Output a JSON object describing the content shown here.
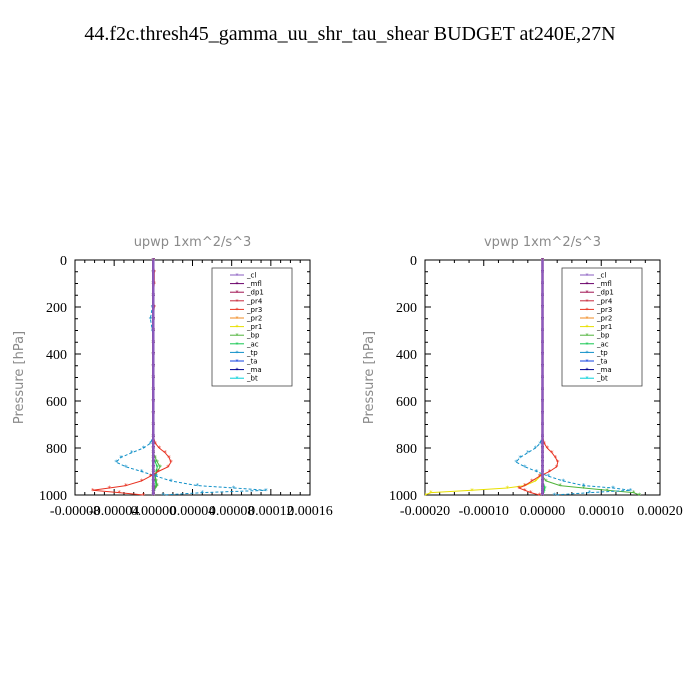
{
  "title": "44.f2c.thresh45_gamma_uu_shr_tau_shear  BUDGET at240E,27N",
  "legend_colors": [
    "#8a5cc0",
    "#6a006a",
    "#a01050",
    "#c8283c",
    "#e83222",
    "#f08a20",
    "#e8e000",
    "#50b43c",
    "#14c850",
    "#1090c8",
    "#1040e0",
    "#000090",
    "#00d0d8"
  ],
  "chart_data": [
    {
      "type": "line",
      "title": "upwp   1xm^2/s^3",
      "ylabel": "Pressure [hPa]",
      "xlabel": "",
      "xlim": [
        -8e-05,
        0.00016
      ],
      "ylim": [
        1000,
        0
      ],
      "x_tick_labels": [
        "-0.00008",
        "-0.00004",
        "0.00000",
        "0.00004",
        "0.00008",
        "0.00012",
        "0.00016"
      ],
      "y_tick_labels": [
        "0",
        "200",
        "400",
        "600",
        "800",
        "1000"
      ],
      "legend": [
        "_cl",
        "_mfl",
        "_dp1",
        "_pr4",
        "_pr3",
        "_pr2",
        "_pr1",
        "_bp",
        "_ac",
        "_tp",
        "_ta",
        "_ma",
        "_bt"
      ],
      "legend_position": "top-right",
      "y": [
        0,
        50,
        100,
        150,
        200,
        250,
        300,
        350,
        400,
        450,
        500,
        550,
        600,
        650,
        700,
        750,
        780,
        800,
        820,
        840,
        860,
        880,
        900,
        920,
        940,
        960,
        970,
        980,
        990,
        1000
      ],
      "series": [
        {
          "name": "_cl",
          "values": [
            0,
            0,
            0,
            0,
            0,
            0,
            0,
            0,
            0,
            0,
            0,
            0,
            0,
            0,
            0,
            0,
            0,
            0,
            0,
            0,
            0,
            0,
            0,
            0,
            0,
            0,
            0,
            0,
            0,
            0
          ]
        },
        {
          "name": "_mfl",
          "values": [
            0,
            0,
            0,
            0,
            0,
            0,
            0,
            0,
            0,
            0,
            0,
            0,
            0,
            0,
            0,
            0,
            0,
            0,
            0,
            0,
            0,
            0,
            0,
            0,
            0,
            0,
            0,
            0,
            0,
            0
          ]
        },
        {
          "name": "_dp1",
          "values": [
            0,
            0,
            0,
            0,
            0,
            0,
            0,
            0,
            0,
            0,
            0,
            0,
            0,
            0,
            0,
            0,
            0,
            0,
            0,
            0,
            0,
            0,
            0,
            0,
            0,
            0,
            0,
            0,
            0,
            0
          ]
        },
        {
          "name": "_pr4",
          "values": [
            0,
            0,
            0,
            0,
            0,
            0,
            0,
            0,
            0,
            0,
            0,
            0,
            0,
            0,
            0,
            0,
            0,
            0,
            0,
            0,
            0,
            0,
            0,
            0,
            0,
            0,
            0,
            0,
            0,
            0
          ]
        },
        {
          "name": "_pr3",
          "values": [
            0,
            1e-06,
            1e-06,
            0,
            1e-06,
            0,
            0,
            0,
            0,
            0,
            0,
            0,
            0,
            0,
            0,
            0,
            2e-06,
            6e-06,
            1.2e-05,
            1.6e-05,
            1.8e-05,
            1.5e-05,
            5e-06,
            -3e-06,
            -1.2e-05,
            -2.8e-05,
            -4.5e-05,
            -6.2e-05,
            -3.5e-05,
            -1e-05
          ]
        },
        {
          "name": "_pr2",
          "values": [
            0,
            0,
            0,
            0,
            0,
            0,
            0,
            0,
            0,
            0,
            0,
            0,
            0,
            0,
            0,
            0,
            0,
            0,
            0,
            0,
            0,
            0,
            0,
            0,
            0,
            0,
            0,
            0,
            0,
            0
          ]
        },
        {
          "name": "_pr1",
          "values": [
            0,
            0,
            0,
            0,
            0,
            0,
            0,
            0,
            0,
            0,
            0,
            0,
            0,
            0,
            0,
            0,
            0,
            0,
            0,
            0,
            0,
            0,
            0,
            0,
            0,
            0,
            0,
            0,
            0,
            0
          ]
        },
        {
          "name": "_bp",
          "values": [
            0,
            0,
            0,
            0,
            0,
            0,
            0,
            0,
            0,
            0,
            0,
            0,
            0,
            0,
            0,
            0,
            0,
            0,
            0,
            2e-06,
            4e-06,
            7e-06,
            4e-06,
            2e-06,
            3e-06,
            4e-06,
            2e-06,
            0,
            0,
            0
          ]
        },
        {
          "name": "_ac",
          "values": [
            0,
            0,
            0,
            0,
            0,
            0,
            0,
            0,
            0,
            0,
            0,
            0,
            0,
            0,
            0,
            0,
            0,
            0,
            0,
            0,
            2e-06,
            4e-06,
            3e-06,
            2e-06,
            2e-06,
            3e-06,
            2e-06,
            1e-06,
            0,
            0
          ]
        },
        {
          "name": "_tp",
          "values": [
            0,
            0,
            0,
            0,
            -1e-06,
            -3e-06,
            -1e-06,
            0,
            0,
            0,
            0,
            0,
            0,
            0,
            0,
            0,
            -3e-06,
            -1e-05,
            -2.2e-05,
            -3.3e-05,
            -3.8e-05,
            -2.8e-05,
            -1.2e-05,
            3e-06,
            1.8e-05,
            4.5e-05,
            8.2e-05,
            0.000115,
            5e-05,
            1e-05
          ]
        },
        {
          "name": "_ta",
          "values": [
            0,
            0,
            0,
            0,
            0,
            0,
            0,
            0,
            0,
            0,
            0,
            0,
            0,
            0,
            0,
            0,
            0,
            0,
            0,
            0,
            0,
            0,
            0,
            0,
            0,
            0,
            0,
            0,
            0,
            0
          ]
        },
        {
          "name": "_ma",
          "values": [
            0,
            0,
            0,
            0,
            0,
            0,
            0,
            0,
            0,
            0,
            0,
            0,
            0,
            0,
            0,
            0,
            0,
            0,
            0,
            0,
            0,
            0,
            0,
            0,
            0,
            0,
            0,
            0,
            0,
            0
          ]
        },
        {
          "name": "_bt",
          "values": [
            0,
            0,
            0,
            0,
            0,
            0,
            0,
            0,
            0,
            0,
            0,
            0,
            0,
            0,
            0,
            0,
            0,
            0,
            0,
            0,
            0,
            0,
            0,
            0,
            0,
            0,
            0,
            0,
            0,
            0
          ]
        }
      ]
    },
    {
      "type": "line",
      "title": "vpwp   1xm^2/s^3",
      "ylabel": "Pressure [hPa]",
      "xlabel": "",
      "xlim": [
        -0.0002,
        0.0002
      ],
      "ylim": [
        1000,
        0
      ],
      "x_tick_labels": [
        "-0.00020",
        "-0.00010",
        "0.00000",
        "0.00010",
        "0.00020"
      ],
      "y_tick_labels": [
        "0",
        "200",
        "400",
        "600",
        "800",
        "1000"
      ],
      "legend": [
        "_cl",
        "_mfl",
        "_dp1",
        "_pr4",
        "_pr3",
        "_pr2",
        "_pr1",
        "_bp",
        "_ac",
        "_tp",
        "_ta",
        "_ma",
        "_bt"
      ],
      "legend_position": "top-right",
      "y": [
        0,
        50,
        100,
        150,
        200,
        250,
        300,
        350,
        400,
        450,
        500,
        550,
        600,
        650,
        700,
        750,
        780,
        800,
        820,
        840,
        860,
        880,
        900,
        920,
        940,
        960,
        970,
        980,
        990,
        1000
      ],
      "series": [
        {
          "name": "_cl",
          "values": [
            0,
            0,
            0,
            0,
            0,
            0,
            0,
            0,
            0,
            0,
            0,
            0,
            0,
            0,
            0,
            0,
            0,
            0,
            0,
            0,
            0,
            0,
            0,
            0,
            0,
            0,
            0,
            0,
            0,
            0
          ]
        },
        {
          "name": "_mfl",
          "values": [
            0,
            0,
            0,
            0,
            0,
            0,
            0,
            0,
            0,
            0,
            0,
            0,
            0,
            0,
            0,
            0,
            0,
            0,
            0,
            0,
            0,
            0,
            0,
            0,
            0,
            0,
            0,
            0,
            0,
            0
          ]
        },
        {
          "name": "_dp1",
          "values": [
            0,
            0,
            0,
            0,
            0,
            0,
            0,
            0,
            0,
            0,
            0,
            0,
            0,
            0,
            0,
            0,
            0,
            0,
            0,
            0,
            0,
            0,
            0,
            0,
            0,
            0,
            0,
            0,
            0,
            0
          ]
        },
        {
          "name": "_pr4",
          "values": [
            0,
            0,
            0,
            0,
            0,
            0,
            0,
            0,
            0,
            0,
            0,
            0,
            0,
            0,
            0,
            0,
            0,
            0,
            0,
            0,
            0,
            0,
            0,
            0,
            0,
            0,
            0,
            0,
            0,
            0
          ]
        },
        {
          "name": "_pr3",
          "values": [
            0,
            0,
            0,
            0,
            0,
            0,
            0,
            0,
            0,
            0,
            0,
            0,
            0,
            0,
            0,
            0,
            3e-06,
            8e-06,
            1.6e-05,
            2.2e-05,
            2.6e-05,
            2.4e-05,
            1.2e-05,
            -5e-06,
            -1.8e-05,
            -3e-05,
            -4e-05,
            -3e-05,
            -2e-05,
            -5e-06
          ]
        },
        {
          "name": "_pr2",
          "values": [
            0,
            0,
            0,
            0,
            0,
            0,
            0,
            0,
            0,
            0,
            0,
            0,
            0,
            0,
            0,
            0,
            0,
            0,
            0,
            0,
            0,
            0,
            0,
            0,
            0,
            0,
            0,
            0,
            0,
            0
          ]
        },
        {
          "name": "_pr1",
          "values": [
            0,
            0,
            0,
            0,
            0,
            0,
            0,
            0,
            0,
            0,
            0,
            0,
            0,
            0,
            0,
            0,
            0,
            0,
            0,
            0,
            0,
            0,
            0,
            -4e-06,
            -1.2e-05,
            -3e-05,
            -6e-05,
            -0.00012,
            -0.00019,
            -0.0002
          ]
        },
        {
          "name": "_bp",
          "values": [
            0,
            0,
            0,
            0,
            0,
            0,
            0,
            0,
            0,
            0,
            0,
            0,
            0,
            0,
            0,
            0,
            0,
            0,
            0,
            0,
            0,
            0,
            0,
            0,
            6e-06,
            3e-05,
            7e-05,
            0.00011,
            0.000155,
            0.000165
          ]
        },
        {
          "name": "_ac",
          "values": [
            0,
            0,
            0,
            0,
            0,
            0,
            0,
            0,
            0,
            0,
            0,
            0,
            0,
            0,
            0,
            0,
            0,
            0,
            0,
            0,
            0,
            0,
            0,
            0,
            0,
            2e-06,
            4e-06,
            3e-06,
            2e-06,
            0
          ]
        },
        {
          "name": "_tp",
          "values": [
            0,
            0,
            0,
            0,
            0,
            0,
            0,
            0,
            0,
            0,
            0,
            0,
            0,
            0,
            0,
            0,
            -4e-06,
            -1.2e-05,
            -2.5e-05,
            -3.8e-05,
            -4.5e-05,
            -3e-05,
            -1e-05,
            1e-05,
            3.5e-05,
            7e-05,
            0.00012,
            0.00015,
            8e-05,
            2e-05
          ]
        },
        {
          "name": "_ta",
          "values": [
            0,
            0,
            0,
            0,
            0,
            0,
            0,
            0,
            0,
            0,
            0,
            0,
            0,
            0,
            0,
            0,
            0,
            0,
            0,
            0,
            0,
            0,
            0,
            0,
            0,
            0,
            0,
            0,
            0,
            0
          ]
        },
        {
          "name": "_ma",
          "values": [
            0,
            0,
            0,
            0,
            0,
            0,
            0,
            0,
            0,
            0,
            0,
            0,
            0,
            0,
            0,
            0,
            0,
            0,
            0,
            0,
            0,
            0,
            0,
            0,
            0,
            0,
            0,
            0,
            0,
            0
          ]
        },
        {
          "name": "_bt",
          "values": [
            0,
            0,
            0,
            0,
            0,
            0,
            0,
            0,
            0,
            0,
            0,
            0,
            0,
            0,
            0,
            0,
            0,
            0,
            0,
            0,
            0,
            0,
            0,
            0,
            0,
            0,
            0,
            0,
            0,
            0
          ]
        }
      ]
    }
  ]
}
